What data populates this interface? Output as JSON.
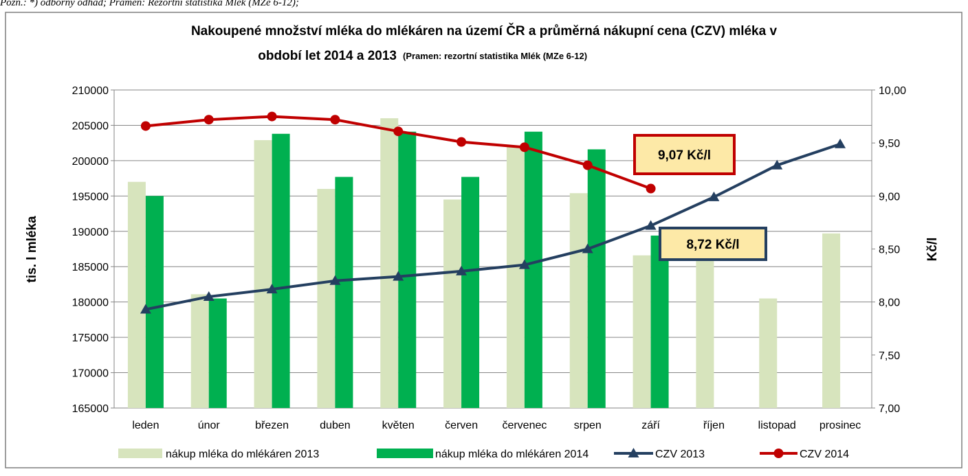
{
  "note": "Pozn.: *) odborný odhad; Pramen: Rezortní statistika Mlék (MZe 6-12);",
  "chart_data": {
    "type": "bar-line",
    "title": [
      "Nakoupené množství mléka do mlékáren na území ČR a průměrná nákupní cena (CZV) mléka v",
      "období let 2014 a 2013"
    ],
    "subtitle": "(Pramen: rezortní statistika Mlék (MZe 6-12)",
    "ylabel": "tis. l mléka",
    "y2label": "Kč/l",
    "categories": [
      "leden",
      "únor",
      "březen",
      "duben",
      "květen",
      "červen",
      "červenec",
      "srpen",
      "září",
      "říjen",
      "listopad",
      "prosinec"
    ],
    "series": [
      {
        "name": "nákup mléka do mlékáren 2013",
        "kind": "bar",
        "color": "#d7e4bd",
        "values": [
          197000,
          181100,
          202900,
          196000,
          206000,
          194500,
          202000,
          195400,
          186600,
          186500,
          180500,
          189700
        ]
      },
      {
        "name": "nákup mléka do mlékáren 2014",
        "kind": "bar",
        "color": "#00b050",
        "values": [
          195000,
          180500,
          203800,
          197700,
          204100,
          197700,
          204100,
          201600,
          189400,
          null,
          null,
          null
        ]
      },
      {
        "name": "CZV 2013",
        "kind": "line",
        "axis": "y2",
        "marker": "triangle",
        "color": "#243f60",
        "values": [
          7.93,
          8.05,
          8.12,
          8.2,
          8.24,
          8.29,
          8.35,
          8.5,
          8.72,
          8.99,
          9.29,
          9.49
        ]
      },
      {
        "name": "CZV 2014",
        "kind": "line",
        "axis": "y2",
        "marker": "circle",
        "color": "#c00000",
        "values": [
          9.66,
          9.72,
          9.75,
          9.72,
          9.61,
          9.51,
          9.46,
          9.29,
          9.07,
          null,
          null,
          null
        ]
      }
    ],
    "ylim": [
      165000,
      210000
    ],
    "yticks": [
      165000,
      170000,
      175000,
      180000,
      185000,
      190000,
      195000,
      200000,
      205000,
      210000
    ],
    "y2lim": [
      7,
      10
    ],
    "y2ticks": [
      {
        "value": 7,
        "label": "7,00"
      },
      {
        "value": 7.5,
        "label": "7,50"
      },
      {
        "value": 8,
        "label": "8,00"
      },
      {
        "value": 8.5,
        "label": "8,50"
      },
      {
        "value": 9,
        "label": "9,00"
      },
      {
        "value": 9.5,
        "label": "9,50"
      },
      {
        "value": 10,
        "label": "10,00"
      }
    ],
    "grid": true,
    "legend": "bottom",
    "annotations": [
      {
        "text": "9,07 Kč/l",
        "series": 3,
        "color": "#c00000"
      },
      {
        "text": "8,72 Kč/l",
        "series": 2,
        "color": "#243f60"
      }
    ]
  }
}
